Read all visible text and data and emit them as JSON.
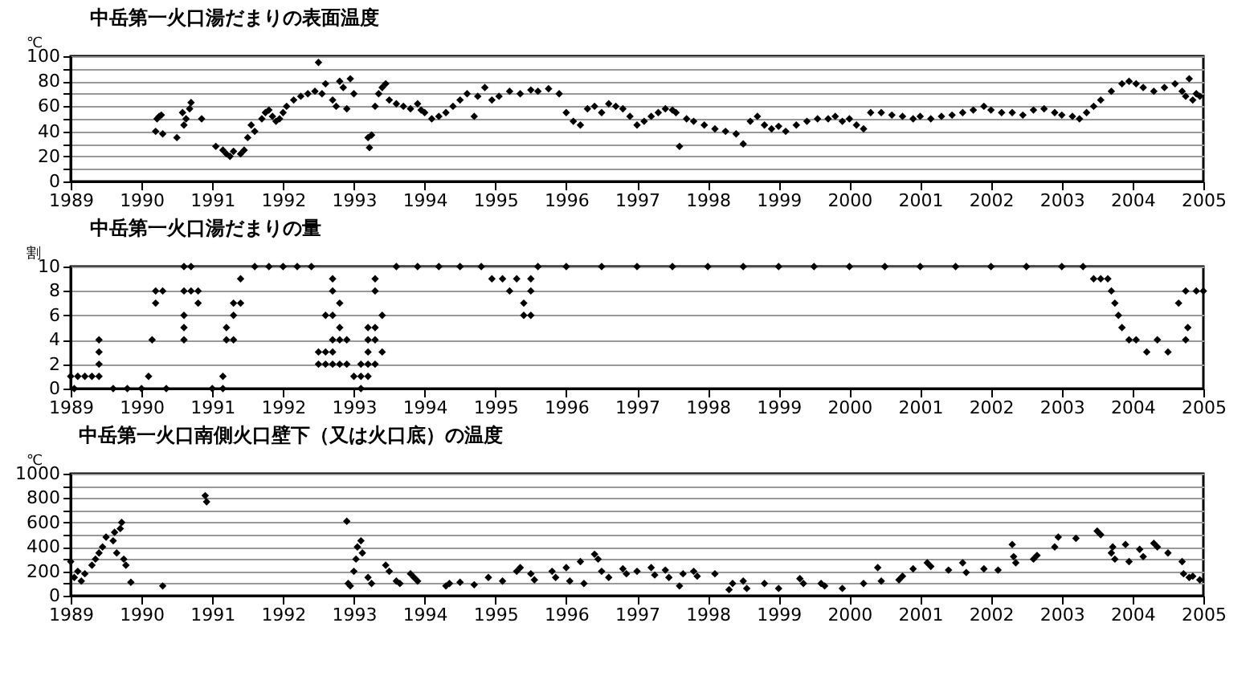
{
  "chart_data": [
    {
      "type": "scatter",
      "title": "中岳第一火口湯だまりの表面温度",
      "ylabel": "℃",
      "xlim": [
        1989,
        2005
      ],
      "xticks": [
        1989,
        1990,
        1991,
        1992,
        1993,
        1994,
        1995,
        1996,
        1997,
        1998,
        1999,
        2000,
        2001,
        2002,
        2003,
        2004,
        2005
      ],
      "ylim": [
        0,
        100
      ],
      "yticks": [
        0,
        {
          "value": 10,
          "label": null
        },
        20,
        {
          "value": 30,
          "label": null
        },
        40,
        {
          "value": 50,
          "label": null
        },
        60,
        {
          "value": 70,
          "label": null
        },
        80,
        {
          "value": 90,
          "label": null
        },
        100
      ],
      "grid": "y",
      "marker": "diamond",
      "series": [
        {
          "color": "#000000",
          "x": [
            1990.2,
            1990.22,
            1990.25,
            1990.28,
            1990.3,
            1990.5,
            1990.58,
            1990.6,
            1990.63,
            1990.68,
            1990.7,
            1990.85,
            1991.05,
            1991.15,
            1991.2,
            1991.25,
            1991.3,
            1991.4,
            1991.45,
            1991.5,
            1991.55,
            1991.6,
            1991.7,
            1991.75,
            1991.8,
            1991.85,
            1991.9,
            1991.95,
            1992.0,
            1992.05,
            1992.15,
            1992.25,
            1992.35,
            1992.45,
            1992.5,
            1992.55,
            1992.6,
            1992.7,
            1992.75,
            1992.8,
            1992.85,
            1992.9,
            1992.95,
            1993.0,
            1993.2,
            1993.22,
            1993.25,
            1993.3,
            1993.35,
            1993.4,
            1993.45,
            1993.5,
            1993.6,
            1993.7,
            1993.8,
            1993.9,
            1993.95,
            1994.0,
            1994.1,
            1994.2,
            1994.3,
            1994.4,
            1994.5,
            1994.6,
            1994.7,
            1994.75,
            1994.85,
            1994.95,
            1995.05,
            1995.2,
            1995.35,
            1995.5,
            1995.6,
            1995.75,
            1995.9,
            1996.0,
            1996.1,
            1996.2,
            1996.3,
            1996.4,
            1996.5,
            1996.6,
            1996.7,
            1996.8,
            1996.9,
            1997.0,
            1997.1,
            1997.2,
            1997.3,
            1997.4,
            1997.5,
            1997.55,
            1997.6,
            1997.7,
            1997.8,
            1997.95,
            1998.1,
            1998.25,
            1998.4,
            1998.5,
            1998.6,
            1998.7,
            1998.8,
            1998.9,
            1999.0,
            1999.1,
            1999.25,
            1999.4,
            1999.55,
            1999.7,
            1999.8,
            1999.9,
            2000.0,
            2000.1,
            2000.2,
            2000.3,
            2000.45,
            2000.6,
            2000.75,
            2000.9,
            2001.0,
            2001.15,
            2001.3,
            2001.45,
            2001.6,
            2001.75,
            2001.9,
            2002.0,
            2002.15,
            2002.3,
            2002.45,
            2002.6,
            2002.75,
            2002.9,
            2003.0,
            2003.15,
            2003.25,
            2003.35,
            2003.45,
            2003.55,
            2003.7,
            2003.85,
            2003.95,
            2004.05,
            2004.15,
            2004.3,
            2004.45,
            2004.6,
            2004.7,
            2004.75,
            2004.8,
            2004.85,
            2004.9,
            2004.95
          ],
          "values": [
            40,
            50,
            52,
            53,
            38,
            35,
            55,
            45,
            50,
            58,
            63,
            50,
            28,
            25,
            22,
            20,
            24,
            22,
            25,
            35,
            45,
            40,
            50,
            55,
            57,
            52,
            48,
            50,
            55,
            60,
            65,
            68,
            70,
            72,
            95,
            70,
            78,
            65,
            60,
            80,
            75,
            58,
            82,
            70,
            35,
            27,
            37,
            60,
            70,
            75,
            78,
            65,
            62,
            60,
            58,
            62,
            57,
            55,
            50,
            52,
            55,
            60,
            65,
            70,
            52,
            68,
            75,
            65,
            68,
            72,
            70,
            73,
            72,
            74,
            70,
            55,
            48,
            45,
            58,
            60,
            55,
            62,
            60,
            58,
            52,
            45,
            48,
            52,
            55,
            58,
            57,
            55,
            28,
            50,
            48,
            45,
            42,
            40,
            38,
            30,
            48,
            52,
            45,
            42,
            44,
            40,
            45,
            48,
            50,
            50,
            52,
            48,
            50,
            45,
            42,
            55,
            55,
            53,
            52,
            50,
            52,
            50,
            52,
            53,
            55,
            57,
            60,
            57,
            55,
            55,
            53,
            57,
            58,
            55,
            53,
            52,
            50,
            55,
            60,
            65,
            72,
            78,
            80,
            78,
            75,
            72,
            75,
            78,
            72,
            68,
            82,
            65,
            70,
            68
          ]
        }
      ]
    },
    {
      "type": "scatter",
      "title": "中岳第一火口湯だまりの量",
      "ylabel": "割",
      "xlim": [
        1989,
        2005
      ],
      "xticks": [
        1989,
        1990,
        1991,
        1992,
        1993,
        1994,
        1995,
        1996,
        1997,
        1998,
        1999,
        2000,
        2001,
        2002,
        2003,
        2004,
        2005
      ],
      "ylim": [
        0,
        10
      ],
      "yticks": [
        0,
        2,
        4,
        6,
        8,
        10
      ],
      "grid": "y",
      "marker": "diamond",
      "series": [
        {
          "color": "#000000",
          "x": [
            1989.0,
            1989.1,
            1989.2,
            1989.3,
            1989.05,
            1989.4,
            1989.4,
            1989.4,
            1989.4,
            1989.6,
            1989.8,
            1990.0,
            1990.1,
            1990.15,
            1990.2,
            1990.2,
            1990.3,
            1990.35,
            1990.6,
            1990.6,
            1990.6,
            1990.6,
            1990.6,
            1990.7,
            1990.7,
            1990.8,
            1990.8,
            1991.0,
            1991.15,
            1991.15,
            1991.2,
            1991.2,
            1991.3,
            1991.3,
            1991.3,
            1991.4,
            1991.4,
            1991.6,
            1991.8,
            1992.0,
            1992.2,
            1992.4,
            1992.5,
            1992.5,
            1992.6,
            1992.6,
            1992.6,
            1992.7,
            1992.7,
            1992.7,
            1992.7,
            1992.7,
            1992.7,
            1992.8,
            1992.8,
            1992.8,
            1992.8,
            1992.9,
            1992.9,
            1993.0,
            1993.1,
            1993.1,
            1993.1,
            1993.2,
            1993.2,
            1993.2,
            1993.2,
            1993.2,
            1993.3,
            1993.3,
            1993.3,
            1993.3,
            1993.3,
            1993.4,
            1993.4,
            1993.6,
            1993.9,
            1994.2,
            1994.5,
            1994.8,
            1994.95,
            1995.1,
            1995.3,
            1995.2,
            1995.4,
            1995.4,
            1995.5,
            1995.5,
            1995.5,
            1995.6,
            1996.0,
            1996.5,
            1997.0,
            1997.5,
            1998.0,
            1998.5,
            1999.0,
            1999.5,
            2000.0,
            2000.5,
            2001.0,
            2001.5,
            2002.0,
            2002.5,
            2003.0,
            2003.3,
            2003.45,
            2003.55,
            2003.65,
            2003.7,
            2003.75,
            2003.8,
            2003.85,
            2003.95,
            2004.05,
            2004.2,
            2004.35,
            2004.5,
            2004.65,
            2004.75,
            2004.75,
            2004.78,
            2004.9,
            2005.0
          ],
          "values": [
            1,
            1,
            1,
            1,
            0,
            4,
            3,
            2,
            1,
            0,
            0,
            0,
            1,
            4,
            7,
            8,
            8,
            0,
            10,
            8,
            6,
            5,
            4,
            10,
            8,
            8,
            7,
            0,
            1,
            0,
            4,
            5,
            4,
            6,
            7,
            7,
            9,
            10,
            10,
            10,
            10,
            10,
            3,
            2,
            6,
            3,
            2,
            9,
            8,
            6,
            4,
            3,
            2,
            7,
            5,
            4,
            2,
            4,
            2,
            1,
            0,
            1,
            2,
            2,
            3,
            4,
            5,
            1,
            9,
            8,
            5,
            4,
            2,
            6,
            3,
            10,
            10,
            10,
            10,
            10,
            9,
            9,
            9,
            8,
            7,
            6,
            9,
            8,
            6,
            10,
            10,
            10,
            10,
            10,
            10,
            10,
            10,
            10,
            10,
            10,
            10,
            10,
            10,
            10,
            10,
            10,
            9,
            9,
            9,
            8,
            7,
            6,
            5,
            4,
            4,
            3,
            4,
            3,
            7,
            8,
            4,
            5,
            8,
            8
          ]
        }
      ]
    },
    {
      "type": "scatter",
      "title": "中岳第一火口南側火口壁下（又は火口底）の温度",
      "ylabel": "℃",
      "xlim": [
        1989,
        2005
      ],
      "xticks": [
        1989,
        1990,
        1991,
        1992,
        1993,
        1994,
        1995,
        1996,
        1997,
        1998,
        1999,
        2000,
        2001,
        2002,
        2003,
        2004,
        2005
      ],
      "ylim": [
        0,
        1000
      ],
      "yticks": [
        0,
        {
          "value": 100,
          "label": null
        },
        200,
        {
          "value": 300,
          "label": null
        },
        400,
        {
          "value": 500,
          "label": null
        },
        600,
        {
          "value": 700,
          "label": null
        },
        800,
        {
          "value": 900,
          "label": null
        },
        1000
      ],
      "grid": "y",
      "marker": "diamond",
      "series": [
        {
          "color": "#000000",
          "x": [
            1989.0,
            1989.05,
            1989.1,
            1989.15,
            1989.2,
            1989.3,
            1989.35,
            1989.4,
            1989.45,
            1989.5,
            1989.6,
            1989.62,
            1989.65,
            1989.7,
            1989.72,
            1989.75,
            1989.78,
            1989.85,
            1990.3,
            1990.9,
            1990.92,
            1992.9,
            1992.92,
            1992.95,
            1993.0,
            1993.03,
            1993.05,
            1993.1,
            1993.12,
            1993.2,
            1993.25,
            1993.45,
            1993.5,
            1993.6,
            1993.65,
            1993.8,
            1993.85,
            1993.9,
            1994.3,
            1994.35,
            1994.5,
            1994.7,
            1994.9,
            1995.1,
            1995.3,
            1995.35,
            1995.5,
            1995.55,
            1995.8,
            1995.85,
            1996.0,
            1996.05,
            1996.2,
            1996.25,
            1996.4,
            1996.45,
            1996.5,
            1996.6,
            1996.8,
            1996.85,
            1997.0,
            1997.2,
            1997.25,
            1997.4,
            1997.45,
            1997.6,
            1997.65,
            1997.8,
            1997.85,
            1998.1,
            1998.3,
            1998.35,
            1998.5,
            1998.55,
            1998.8,
            1999.0,
            1999.3,
            1999.35,
            1999.6,
            1999.65,
            1999.9,
            2000.2,
            2000.4,
            2000.45,
            2000.7,
            2000.75,
            2000.9,
            2001.1,
            2001.15,
            2001.4,
            2001.6,
            2001.65,
            2001.9,
            2002.1,
            2002.3,
            2002.32,
            2002.35,
            2002.6,
            2002.65,
            2002.9,
            2002.95,
            2003.2,
            2003.5,
            2003.55,
            2003.7,
            2003.72,
            2003.75,
            2003.9,
            2003.95,
            2004.1,
            2004.15,
            2004.3,
            2004.35,
            2004.5,
            2004.7,
            2004.72,
            2004.8,
            2004.85,
            2004.95
          ],
          "values": [
            280,
            150,
            200,
            120,
            180,
            250,
            300,
            350,
            400,
            480,
            450,
            520,
            350,
            550,
            600,
            300,
            250,
            110,
            80,
            820,
            770,
            610,
            100,
            80,
            200,
            300,
            400,
            450,
            350,
            150,
            100,
            250,
            200,
            120,
            100,
            180,
            150,
            120,
            80,
            100,
            110,
            90,
            150,
            120,
            200,
            230,
            180,
            130,
            200,
            150,
            230,
            120,
            280,
            100,
            340,
            300,
            200,
            150,
            220,
            180,
            200,
            230,
            170,
            210,
            150,
            80,
            180,
            200,
            160,
            180,
            50,
            100,
            120,
            60,
            100,
            60,
            140,
            100,
            100,
            80,
            60,
            100,
            230,
            120,
            130,
            160,
            220,
            270,
            240,
            210,
            270,
            190,
            220,
            210,
            420,
            320,
            270,
            300,
            330,
            400,
            480,
            470,
            530,
            500,
            350,
            400,
            300,
            420,
            280,
            380,
            320,
            430,
            400,
            350,
            280,
            180,
            150,
            160,
            130
          ]
        }
      ]
    }
  ]
}
